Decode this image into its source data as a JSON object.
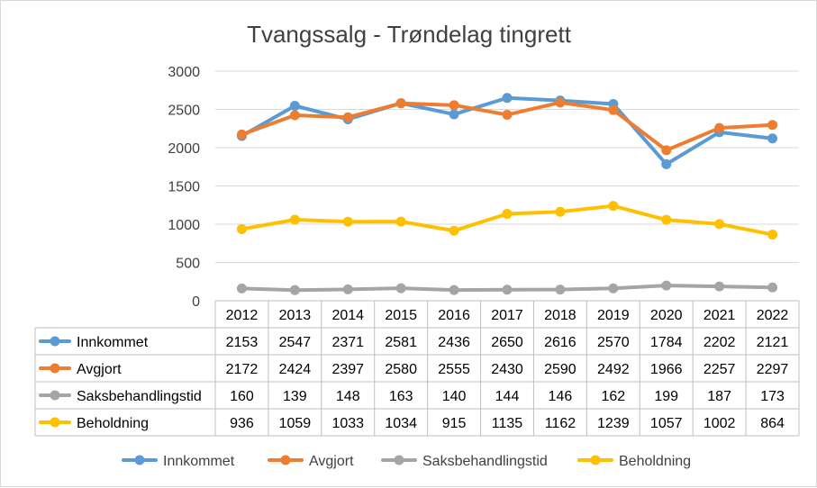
{
  "chart_data": {
    "type": "line",
    "title": "Tvangssalg - Trøndelag tingrett",
    "x": [
      "2012",
      "2013",
      "2014",
      "2015",
      "2016",
      "2017",
      "2018",
      "2019",
      "2020",
      "2021",
      "2022"
    ],
    "ylim": [
      0,
      3000
    ],
    "yticks": [
      0,
      500,
      1000,
      1500,
      2000,
      2500,
      3000
    ],
    "grid": true,
    "legend_position": "bottom",
    "data_table": true,
    "series": [
      {
        "name": "Innkommet",
        "color": "#5b9bd5",
        "values": [
          2153,
          2547,
          2371,
          2581,
          2436,
          2650,
          2616,
          2570,
          1784,
          2202,
          2121
        ]
      },
      {
        "name": "Avgjort",
        "color": "#ed7d31",
        "values": [
          2172,
          2424,
          2397,
          2580,
          2555,
          2430,
          2590,
          2492,
          1966,
          2257,
          2297
        ]
      },
      {
        "name": "Saksbehandlingstid",
        "color": "#a5a5a5",
        "values": [
          160,
          139,
          148,
          163,
          140,
          144,
          146,
          162,
          199,
          187,
          173
        ]
      },
      {
        "name": "Beholdning",
        "color": "#ffc000",
        "values": [
          936,
          1059,
          1033,
          1034,
          915,
          1135,
          1162,
          1239,
          1057,
          1002,
          864
        ]
      }
    ]
  }
}
